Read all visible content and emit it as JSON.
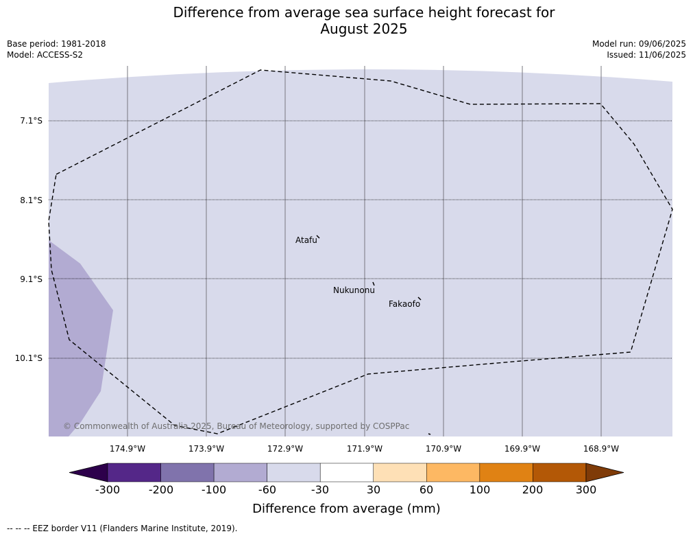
{
  "title_line1": "Difference from average sea surface height forecast for",
  "title_line2": "August 2025",
  "base_period": "Base period: 1981-2018",
  "model": "Model: ACCESS-S2",
  "model_run": "Model run: 09/06/2025",
  "issued": "Issued: 11/06/2025",
  "lat_labels": [
    "7.1°S",
    "8.1°S",
    "9.1°S",
    "10.1°S"
  ],
  "lon_labels": [
    "174.9°W",
    "173.9°W",
    "172.9°W",
    "171.9°W",
    "170.9°W",
    "169.9°W",
    "168.9°W"
  ],
  "places": [
    {
      "name": "Atafu",
      "lon": -172.5,
      "lat": -8.55
    },
    {
      "name": "Nukunonu",
      "lon": -171.85,
      "lat": -9.17
    },
    {
      "name": "Fakaofo",
      "lon": -171.25,
      "lat": -9.37
    }
  ],
  "copyright": "© Commonwealth of Australia 2025, Bureau of Meteorology, supported by COSPPac",
  "colorbar": {
    "ticks": [
      "-300",
      "-200",
      "-100",
      "-60",
      "-30",
      "30",
      "60",
      "100",
      "200",
      "300"
    ],
    "colors": [
      "#2d004b",
      "#542788",
      "#8073ac",
      "#b2abd2",
      "#d8daeb",
      "#ffffff",
      "#fee0b6",
      "#fdb863",
      "#e08214",
      "#b35806",
      "#7f3b08"
    ],
    "label": "Difference from average (mm)"
  },
  "map_colors": {
    "background": "#d8daeb",
    "anomaly": "#b2abd2"
  },
  "footer": "--  --  -- EEZ border V11 (Flanders Marine Institute, 2019)."
}
